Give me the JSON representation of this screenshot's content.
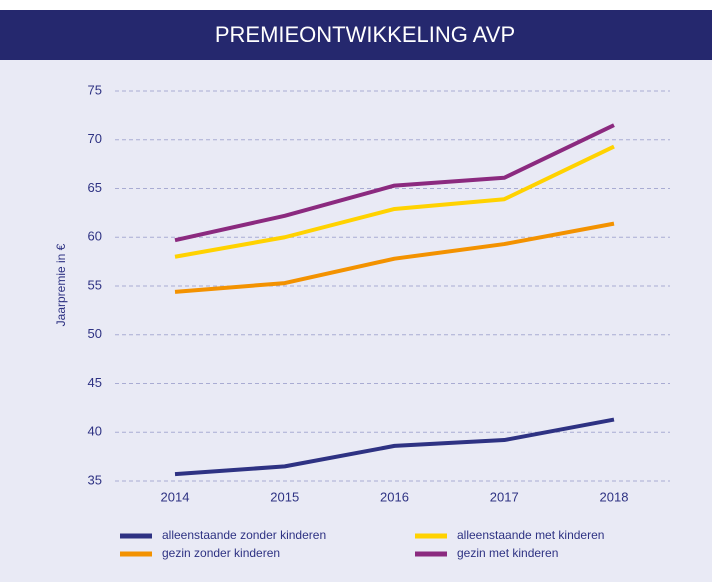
{
  "chart_data": {
    "type": "line",
    "title": "PREMIEONTWIKKELING AVP",
    "y_label": "Jaarpremie in €",
    "categories": [
      "2014",
      "2015",
      "2016",
      "2017",
      "2018"
    ],
    "series": [
      {
        "name": "alleenstaande zonder kinderen",
        "color": "#2e3283",
        "values": [
          35.7,
          36.5,
          38.6,
          39.2,
          41.3
        ]
      },
      {
        "name": "alleenstaande met kinderen",
        "color": "#ffd200",
        "values": [
          58.0,
          60.0,
          62.9,
          63.9,
          69.3
        ]
      },
      {
        "name": "gezin zonder kinderen",
        "color": "#f39200",
        "values": [
          54.4,
          55.3,
          57.8,
          59.3,
          61.4
        ]
      },
      {
        "name": "gezin met kinderen",
        "color": "#8b2a7f",
        "values": [
          59.7,
          62.2,
          65.3,
          66.1,
          71.5
        ]
      }
    ],
    "ylim": [
      35,
      75
    ],
    "yticks": [
      35,
      40,
      45,
      50,
      55,
      60,
      65,
      70,
      75
    ],
    "grid": true
  }
}
